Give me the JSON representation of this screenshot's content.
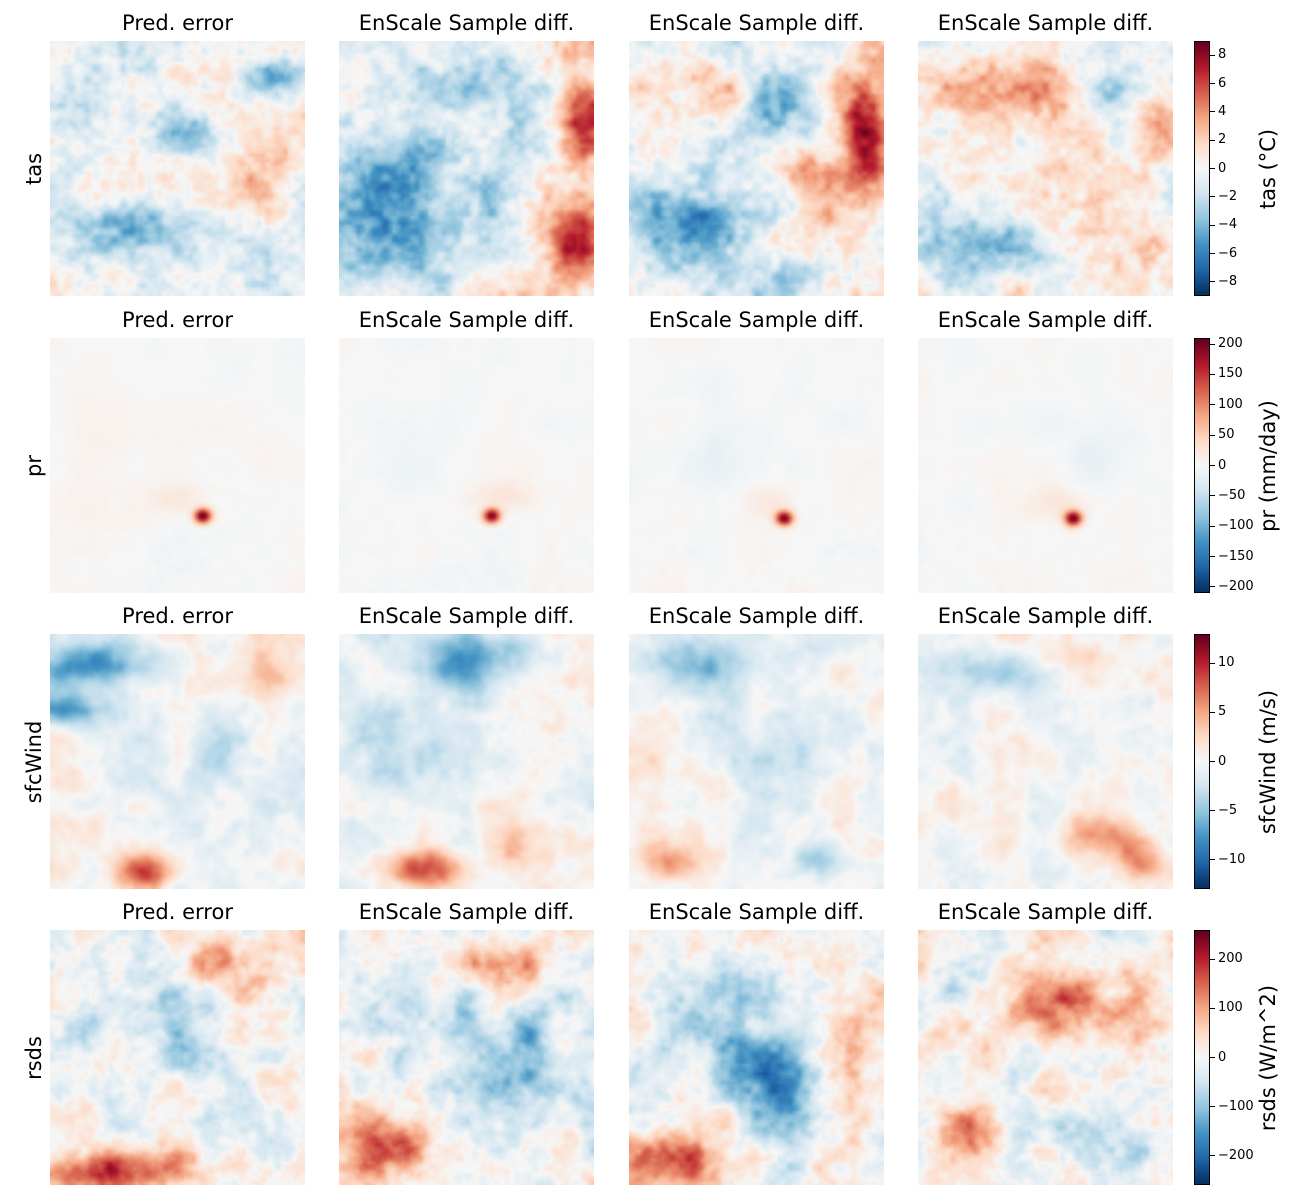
{
  "figure": {
    "colormap": "RdBu_r",
    "colors": {
      "low": "#053061",
      "mid": "#f7f7f7",
      "high": "#67001f"
    }
  },
  "chart_data": [
    {
      "type": "heatmap",
      "variable": "tas",
      "row_label": "tas",
      "colorbar_label": "tas (°C)",
      "vmin": -9,
      "vmax": 9,
      "ticks": [
        -8,
        -6,
        -4,
        -2,
        0,
        2,
        4,
        6,
        8
      ],
      "tick_labels": [
        "−8",
        "−6",
        "−4",
        "−2",
        "0",
        "2",
        "4",
        "6",
        "8"
      ],
      "panels": [
        {
          "title": "Pred. error"
        },
        {
          "title": "EnScale Sample diff."
        },
        {
          "title": "EnScale Sample diff."
        },
        {
          "title": "EnScale Sample diff."
        }
      ]
    },
    {
      "type": "heatmap",
      "variable": "pr",
      "row_label": "pr",
      "colorbar_label": "pr (mm/day)",
      "vmin": -210,
      "vmax": 210,
      "ticks": [
        -200,
        -150,
        -100,
        -50,
        0,
        50,
        100,
        150,
        200
      ],
      "tick_labels": [
        "−200",
        "−150",
        "−100",
        "−50",
        "0",
        "50",
        "100",
        "150",
        "200"
      ],
      "panels": [
        {
          "title": "Pred. error"
        },
        {
          "title": "EnScale Sample diff."
        },
        {
          "title": "EnScale Sample diff."
        },
        {
          "title": "EnScale Sample diff."
        }
      ]
    },
    {
      "type": "heatmap",
      "variable": "sfcWind",
      "row_label": "sfcWind",
      "colorbar_label": "sfcWind (m/s)",
      "vmin": -13,
      "vmax": 13,
      "ticks": [
        -10,
        -5,
        0,
        5,
        10
      ],
      "tick_labels": [
        "−10",
        "−5",
        "0",
        "5",
        "10"
      ],
      "panels": [
        {
          "title": "Pred. error"
        },
        {
          "title": "EnScale Sample diff."
        },
        {
          "title": "EnScale Sample diff."
        },
        {
          "title": "EnScale Sample diff."
        }
      ]
    },
    {
      "type": "heatmap",
      "variable": "rsds",
      "row_label": "rsds",
      "colorbar_label": "rsds (W/m^2)",
      "vmin": -260,
      "vmax": 260,
      "ticks": [
        -200,
        -100,
        0,
        100,
        200
      ],
      "tick_labels": [
        "−200",
        "−100",
        "0",
        "100",
        "200"
      ],
      "panels": [
        {
          "title": "Pred. error"
        },
        {
          "title": "EnScale Sample diff."
        },
        {
          "title": "EnScale Sample diff."
        },
        {
          "title": "EnScale Sample diff."
        }
      ]
    }
  ]
}
